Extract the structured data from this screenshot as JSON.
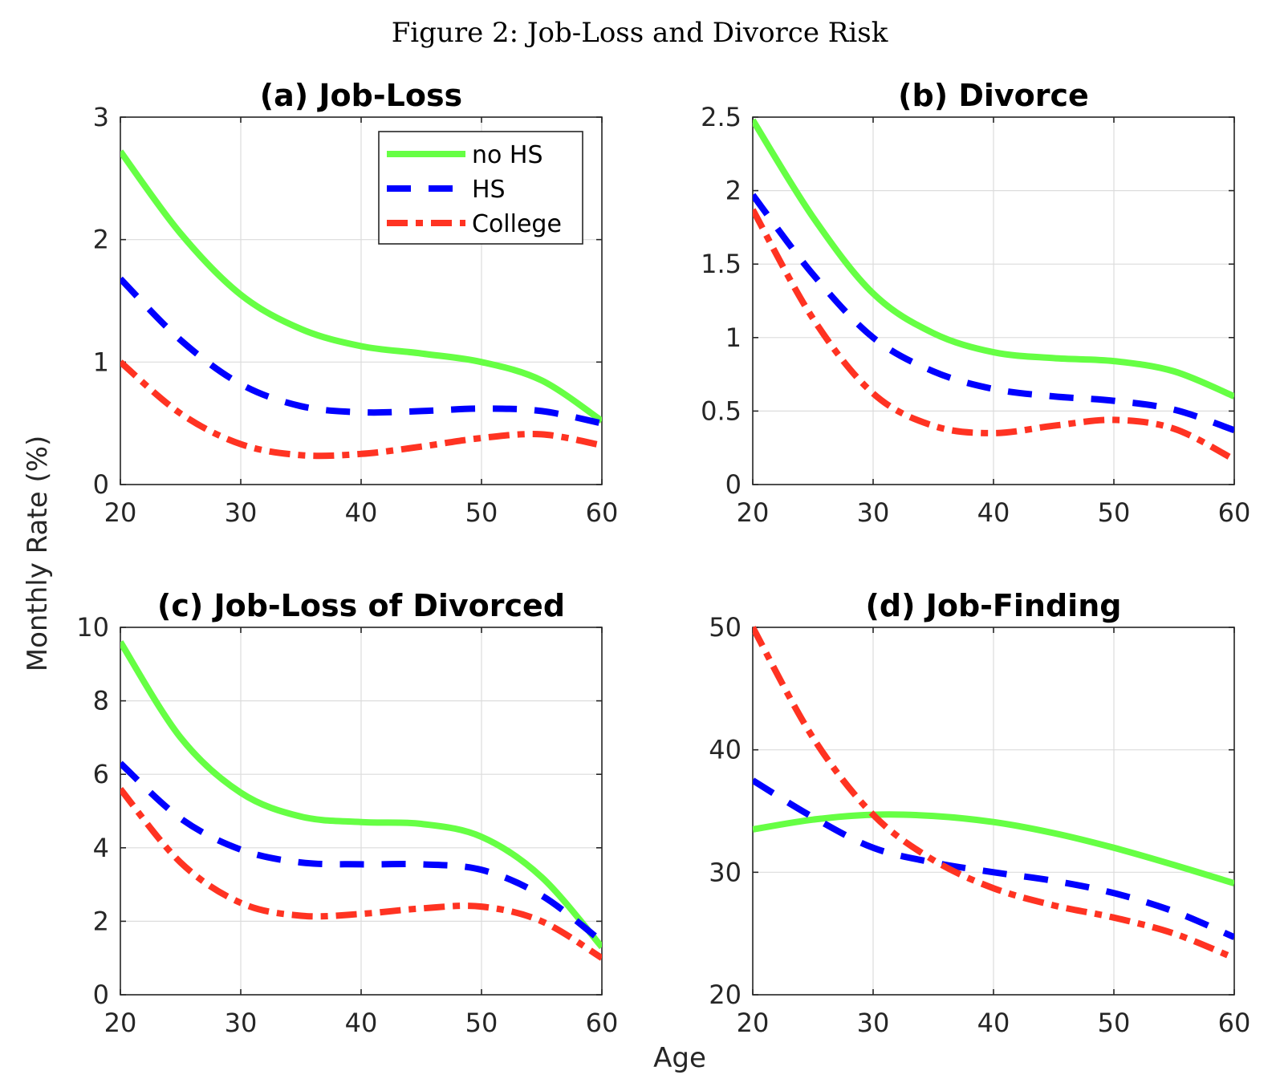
{
  "figure": {
    "title": "Figure 2: Job-Loss and Divorce Risk",
    "xlabel": "Age",
    "ylabel": "Monthly Rate (%)"
  },
  "colors": {
    "no_hs": "#66ff44",
    "hs": "#0000ff",
    "college": "#ff3322"
  },
  "legend": [
    "no HS",
    "HS",
    "College"
  ],
  "chart_data": [
    {
      "type": "line",
      "title": "(a) Job-Loss",
      "xlabel": "Age",
      "ylabel": "Monthly Rate (%)",
      "xlim": [
        20,
        60
      ],
      "ylim": [
        0,
        3
      ],
      "xticks": [
        20,
        30,
        40,
        50,
        60
      ],
      "yticks": [
        0,
        1,
        2,
        3
      ],
      "ytick_labels": [
        "0",
        "1",
        "2",
        "3"
      ],
      "legend": "top-right",
      "x": [
        20,
        25,
        30,
        35,
        40,
        45,
        50,
        55,
        60
      ],
      "series": [
        {
          "name": "no HS",
          "values": [
            2.72,
            2.05,
            1.55,
            1.27,
            1.13,
            1.07,
            1.0,
            0.85,
            0.52
          ]
        },
        {
          "name": "HS",
          "values": [
            1.68,
            1.18,
            0.82,
            0.64,
            0.59,
            0.6,
            0.62,
            0.6,
            0.5
          ]
        },
        {
          "name": "College",
          "values": [
            1.0,
            0.58,
            0.33,
            0.24,
            0.25,
            0.31,
            0.38,
            0.41,
            0.32
          ]
        }
      ]
    },
    {
      "type": "line",
      "title": "(b) Divorce",
      "xlim": [
        20,
        60
      ],
      "ylim": [
        0,
        2.5
      ],
      "xticks": [
        20,
        30,
        40,
        50,
        60
      ],
      "yticks": [
        0,
        0.5,
        1,
        1.5,
        2,
        2.5
      ],
      "ytick_labels": [
        "0",
        "0.5",
        "1",
        "1.5",
        "2",
        "2.5"
      ],
      "x": [
        20,
        25,
        30,
        35,
        40,
        45,
        50,
        55,
        60
      ],
      "series": [
        {
          "name": "no HS",
          "values": [
            2.48,
            1.82,
            1.3,
            1.03,
            0.9,
            0.86,
            0.84,
            0.77,
            0.6
          ]
        },
        {
          "name": "HS",
          "values": [
            1.97,
            1.43,
            1.0,
            0.77,
            0.65,
            0.6,
            0.57,
            0.51,
            0.37
          ]
        },
        {
          "name": "College",
          "values": [
            1.87,
            1.13,
            0.62,
            0.4,
            0.35,
            0.4,
            0.44,
            0.38,
            0.17
          ]
        }
      ]
    },
    {
      "type": "line",
      "title": "(c) Job-Loss of Divorced",
      "xlim": [
        20,
        60
      ],
      "ylim": [
        0,
        10
      ],
      "xticks": [
        20,
        30,
        40,
        50,
        60
      ],
      "yticks": [
        0,
        2,
        4,
        6,
        8,
        10
      ],
      "ytick_labels": [
        "0",
        "2",
        "4",
        "6",
        "8",
        "10"
      ],
      "x": [
        20,
        25,
        30,
        35,
        40,
        45,
        50,
        55,
        60
      ],
      "series": [
        {
          "name": "no HS",
          "values": [
            9.6,
            7.0,
            5.5,
            4.85,
            4.7,
            4.65,
            4.3,
            3.2,
            1.3
          ]
        },
        {
          "name": "HS",
          "values": [
            6.3,
            4.8,
            3.95,
            3.6,
            3.55,
            3.55,
            3.4,
            2.7,
            1.45
          ]
        },
        {
          "name": "College",
          "values": [
            5.6,
            3.6,
            2.5,
            2.15,
            2.2,
            2.35,
            2.4,
            2.0,
            1.0
          ]
        }
      ]
    },
    {
      "type": "line",
      "title": "(d) Job-Finding",
      "xlim": [
        20,
        60
      ],
      "ylim": [
        20,
        50
      ],
      "xticks": [
        20,
        30,
        40,
        50,
        60
      ],
      "yticks": [
        20,
        30,
        40,
        50
      ],
      "ytick_labels": [
        "20",
        "30",
        "40",
        "50"
      ],
      "x": [
        20,
        25,
        30,
        35,
        40,
        45,
        50,
        55,
        60
      ],
      "series": [
        {
          "name": "no HS",
          "values": [
            33.5,
            34.3,
            34.7,
            34.6,
            34.1,
            33.2,
            32.0,
            30.6,
            29.1
          ]
        },
        {
          "name": "HS",
          "values": [
            37.5,
            34.5,
            32.0,
            30.8,
            30.0,
            29.3,
            28.3,
            26.8,
            24.7
          ]
        },
        {
          "name": "College",
          "values": [
            50.0,
            41.0,
            34.7,
            31.0,
            28.7,
            27.3,
            26.3,
            25.0,
            23.0
          ]
        }
      ]
    }
  ]
}
